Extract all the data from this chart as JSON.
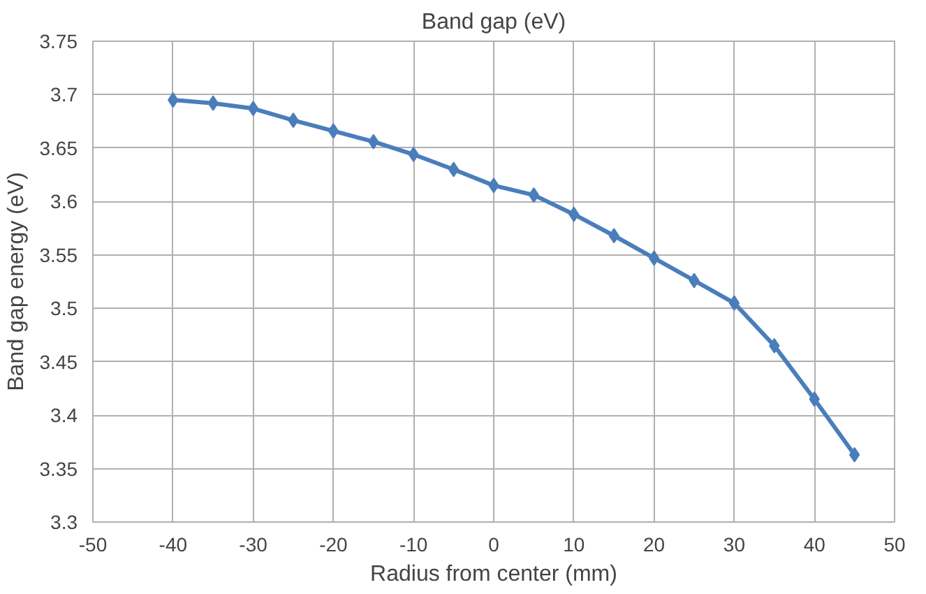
{
  "chart_data": {
    "type": "line",
    "title": "Band gap (eV)",
    "xlabel": "Radius from center (mm)",
    "ylabel": "Band gap energy (eV)",
    "x": [
      -40,
      -35,
      -30,
      -25,
      -20,
      -15,
      -10,
      -5,
      0,
      5,
      10,
      15,
      20,
      25,
      30,
      35,
      40,
      45
    ],
    "series": [
      {
        "color": "#4a7ebb",
        "values": [
          3.695,
          3.692,
          3.687,
          3.676,
          3.666,
          3.656,
          3.644,
          3.63,
          3.615,
          3.606,
          3.588,
          3.568,
          3.547,
          3.526,
          3.505,
          3.465,
          3.415,
          3.363
        ]
      }
    ],
    "xlim": [
      -50,
      50
    ],
    "xticks": [
      -50,
      -40,
      -30,
      -20,
      -10,
      0,
      10,
      20,
      30,
      40,
      50
    ],
    "ylim": [
      3.3,
      3.75
    ],
    "yticks": [
      3.3,
      3.35,
      3.4,
      3.45,
      3.5,
      3.55,
      3.6,
      3.65,
      3.7,
      3.75
    ],
    "grid": true,
    "marker": "diamond",
    "line_style": "solid"
  }
}
